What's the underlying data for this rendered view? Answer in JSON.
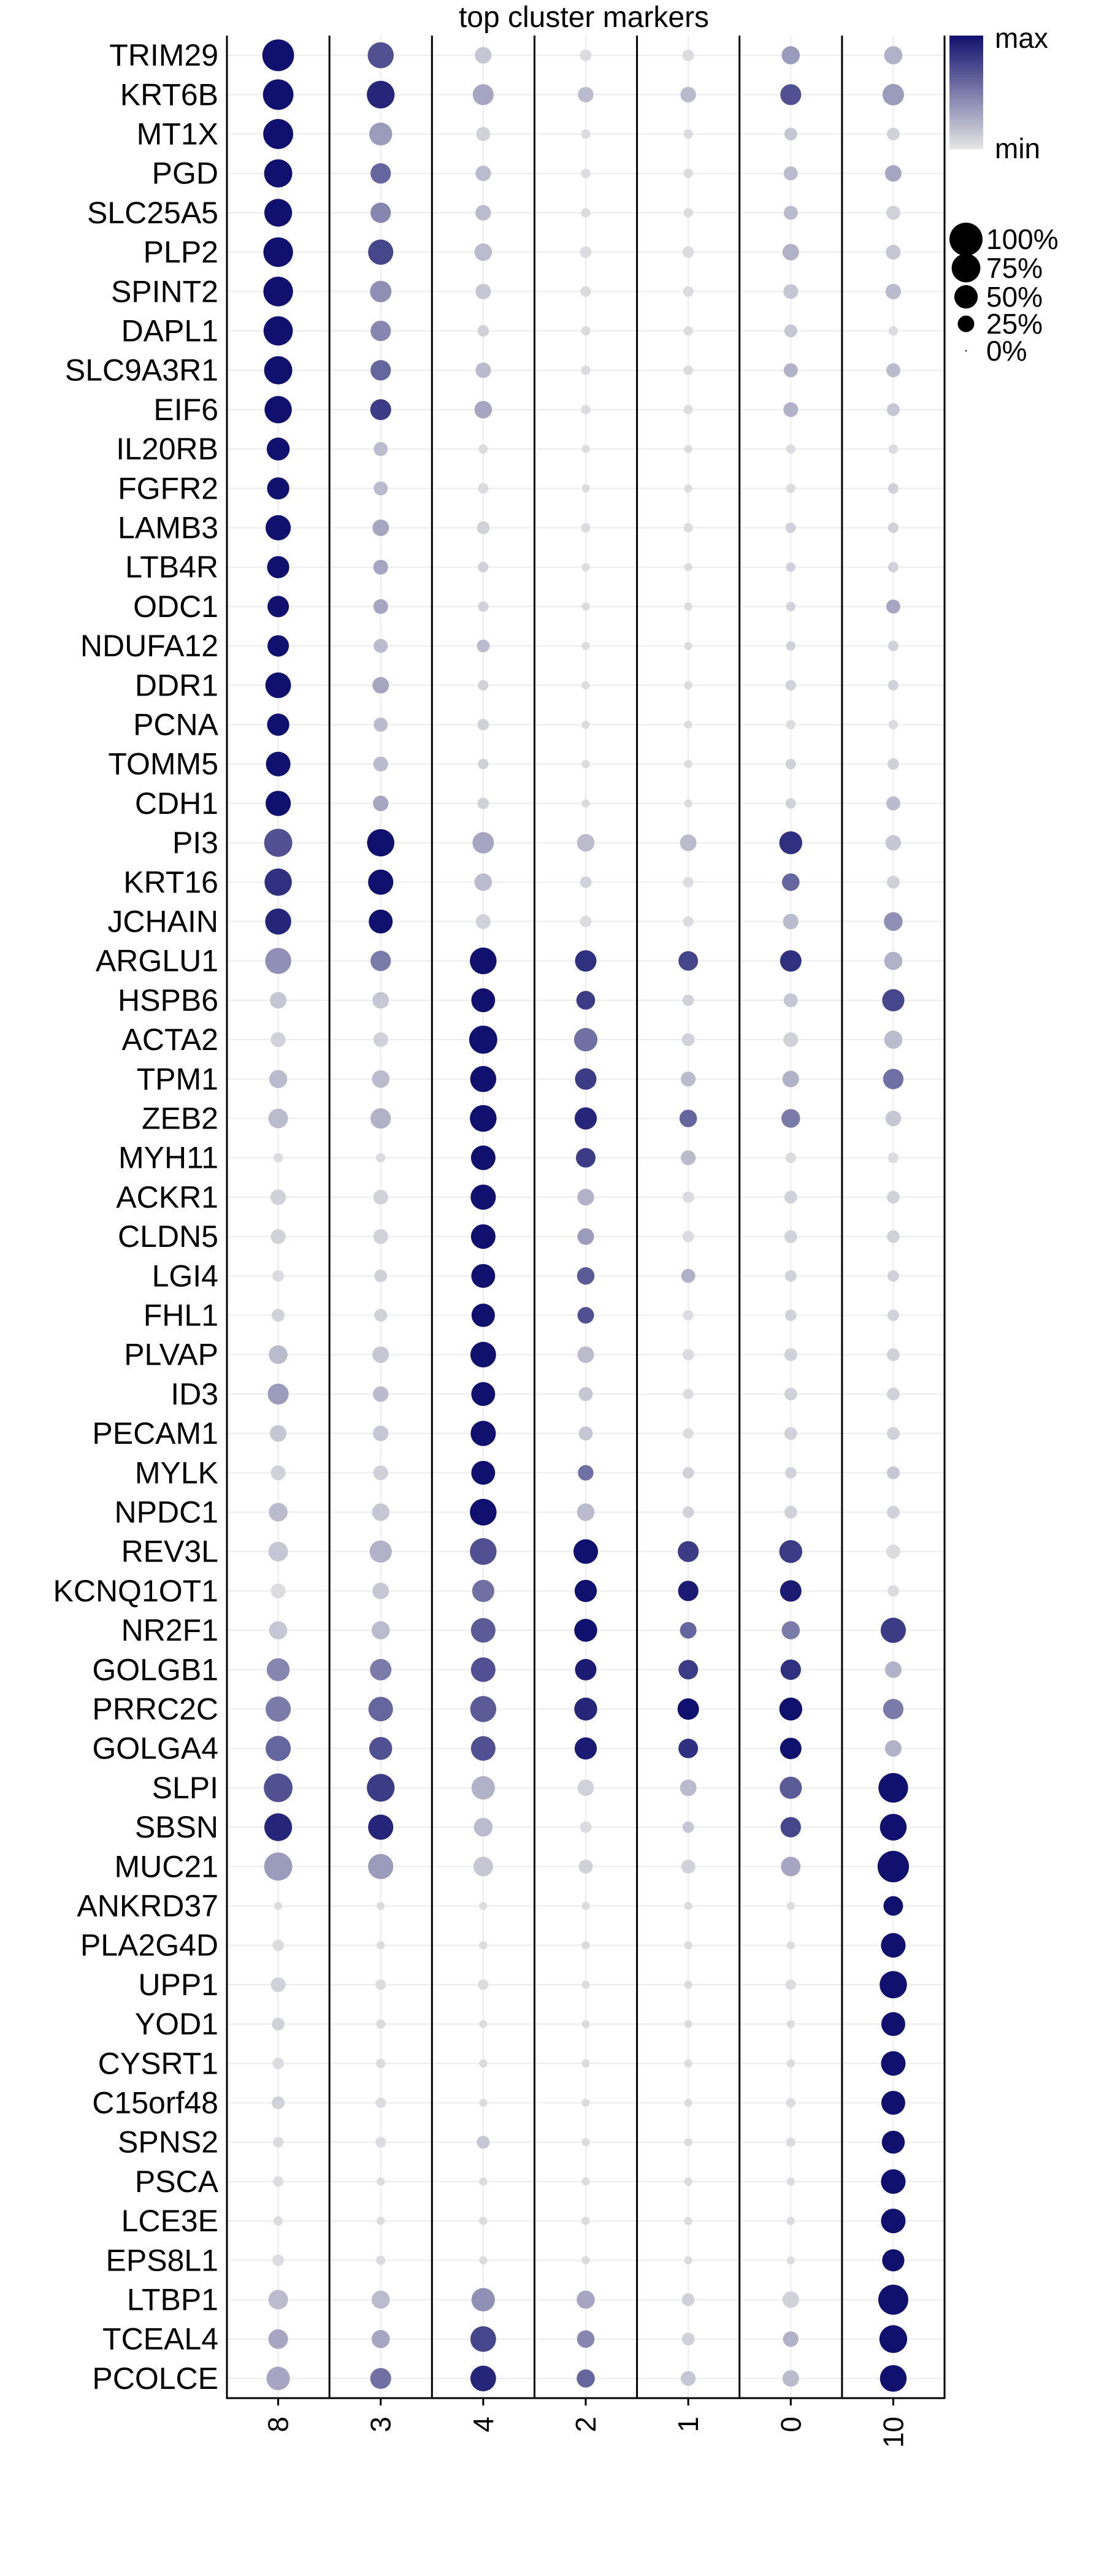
{
  "chart_data": {
    "type": "dotplot",
    "title": "top cluster markers",
    "xlabel": "",
    "ylabel": "",
    "clusters": [
      "8",
      "3",
      "4",
      "2",
      "1",
      "0",
      "10"
    ],
    "genes": [
      "TRIM29",
      "KRT6B",
      "MT1X",
      "PGD",
      "SLC25A5",
      "PLP2",
      "SPINT2",
      "DAPL1",
      "SLC9A3R1",
      "EIF6",
      "IL20RB",
      "FGFR2",
      "LAMB3",
      "LTB4R",
      "ODC1",
      "NDUFA12",
      "DDR1",
      "PCNA",
      "TOMM5",
      "CDH1",
      "PI3",
      "KRT16",
      "JCHAIN",
      "ARGLU1",
      "HSPB6",
      "ACTA2",
      "TPM1",
      "ZEB2",
      "MYH11",
      "ACKR1",
      "CLDN5",
      "LGI4",
      "FHL1",
      "PLVAP",
      "ID3",
      "PECAM1",
      "MYLK",
      "NPDC1",
      "REV3L",
      "KCNQ1OT1",
      "NR2F1",
      "GOLGB1",
      "PRRC2C",
      "GOLGA4",
      "SLPI",
      "SBSN",
      "MUC21",
      "ANKRD37",
      "PLA2G4D",
      "UPP1",
      "YOD1",
      "CYSRT1",
      "C15orf48",
      "SPNS2",
      "PSCA",
      "LCE3E",
      "EPS8L1",
      "LTBP1",
      "TCEAL4",
      "PCOLCE"
    ],
    "pct_expressed": [
      [
        0.92,
        0.62,
        0.25,
        0.12,
        0.12,
        0.3,
        0.3
      ],
      [
        0.85,
        0.7,
        0.4,
        0.22,
        0.22,
        0.4,
        0.42
      ],
      [
        0.82,
        0.48,
        0.18,
        0.08,
        0.08,
        0.15,
        0.15
      ],
      [
        0.72,
        0.38,
        0.22,
        0.08,
        0.08,
        0.18,
        0.25
      ],
      [
        0.7,
        0.38,
        0.22,
        0.08,
        0.08,
        0.18,
        0.18
      ],
      [
        0.8,
        0.58,
        0.28,
        0.12,
        0.12,
        0.25,
        0.2
      ],
      [
        0.8,
        0.42,
        0.22,
        0.1,
        0.1,
        0.2,
        0.22
      ],
      [
        0.78,
        0.38,
        0.12,
        0.08,
        0.08,
        0.15,
        0.08
      ],
      [
        0.72,
        0.38,
        0.22,
        0.08,
        0.08,
        0.18,
        0.18
      ],
      [
        0.68,
        0.4,
        0.28,
        0.08,
        0.08,
        0.2,
        0.15
      ],
      [
        0.48,
        0.18,
        0.08,
        0.06,
        0.06,
        0.08,
        0.08
      ],
      [
        0.45,
        0.18,
        0.1,
        0.06,
        0.06,
        0.08,
        0.1
      ],
      [
        0.58,
        0.25,
        0.15,
        0.08,
        0.08,
        0.1,
        0.1
      ],
      [
        0.45,
        0.2,
        0.1,
        0.06,
        0.06,
        0.08,
        0.1
      ],
      [
        0.42,
        0.2,
        0.1,
        0.06,
        0.06,
        0.08,
        0.18
      ],
      [
        0.42,
        0.18,
        0.15,
        0.06,
        0.06,
        0.08,
        0.1
      ],
      [
        0.6,
        0.25,
        0.1,
        0.06,
        0.06,
        0.1,
        0.1
      ],
      [
        0.45,
        0.18,
        0.12,
        0.06,
        0.06,
        0.08,
        0.08
      ],
      [
        0.55,
        0.2,
        0.1,
        0.06,
        0.06,
        0.1,
        0.12
      ],
      [
        0.58,
        0.22,
        0.12,
        0.06,
        0.06,
        0.1,
        0.18
      ],
      [
        0.72,
        0.68,
        0.42,
        0.28,
        0.25,
        0.48,
        0.22
      ],
      [
        0.68,
        0.58,
        0.28,
        0.12,
        0.1,
        0.28,
        0.15
      ],
      [
        0.62,
        0.52,
        0.2,
        0.12,
        0.1,
        0.22,
        0.32
      ],
      [
        0.62,
        0.38,
        0.65,
        0.42,
        0.35,
        0.42,
        0.3
      ],
      [
        0.25,
        0.25,
        0.52,
        0.32,
        0.12,
        0.18,
        0.45
      ],
      [
        0.2,
        0.2,
        0.72,
        0.5,
        0.15,
        0.2,
        0.3
      ],
      [
        0.3,
        0.28,
        0.62,
        0.42,
        0.2,
        0.25,
        0.38
      ],
      [
        0.35,
        0.38,
        0.65,
        0.45,
        0.28,
        0.32,
        0.22
      ],
      [
        0.08,
        0.08,
        0.55,
        0.35,
        0.2,
        0.1,
        0.1
      ],
      [
        0.22,
        0.2,
        0.58,
        0.25,
        0.12,
        0.15,
        0.15
      ],
      [
        0.2,
        0.2,
        0.55,
        0.25,
        0.12,
        0.15,
        0.15
      ],
      [
        0.12,
        0.15,
        0.52,
        0.28,
        0.18,
        0.12,
        0.12
      ],
      [
        0.15,
        0.15,
        0.5,
        0.25,
        0.1,
        0.12,
        0.12
      ],
      [
        0.32,
        0.25,
        0.6,
        0.25,
        0.12,
        0.15,
        0.15
      ],
      [
        0.4,
        0.22,
        0.52,
        0.18,
        0.1,
        0.15,
        0.15
      ],
      [
        0.25,
        0.22,
        0.58,
        0.18,
        0.1,
        0.15,
        0.15
      ],
      [
        0.2,
        0.2,
        0.52,
        0.22,
        0.12,
        0.12,
        0.15
      ],
      [
        0.32,
        0.28,
        0.65,
        0.28,
        0.12,
        0.15,
        0.15
      ],
      [
        0.35,
        0.45,
        0.65,
        0.55,
        0.4,
        0.48,
        0.18
      ],
      [
        0.2,
        0.25,
        0.45,
        0.45,
        0.38,
        0.42,
        0.12
      ],
      [
        0.3,
        0.3,
        0.55,
        0.48,
        0.25,
        0.3,
        0.58
      ],
      [
        0.48,
        0.42,
        0.55,
        0.42,
        0.35,
        0.38,
        0.25
      ],
      [
        0.58,
        0.55,
        0.62,
        0.48,
        0.42,
        0.48,
        0.38
      ],
      [
        0.58,
        0.48,
        0.55,
        0.45,
        0.35,
        0.42,
        0.25
      ],
      [
        0.75,
        0.7,
        0.5,
        0.25,
        0.25,
        0.45,
        0.8
      ],
      [
        0.7,
        0.58,
        0.32,
        0.12,
        0.12,
        0.38,
        0.65
      ],
      [
        0.72,
        0.58,
        0.35,
        0.18,
        0.18,
        0.35,
        0.9
      ],
      [
        0.06,
        0.06,
        0.06,
        0.06,
        0.06,
        0.06,
        0.35
      ],
      [
        0.12,
        0.06,
        0.06,
        0.06,
        0.06,
        0.06,
        0.55
      ],
      [
        0.2,
        0.1,
        0.1,
        0.06,
        0.06,
        0.1,
        0.68
      ],
      [
        0.15,
        0.08,
        0.06,
        0.06,
        0.06,
        0.06,
        0.52
      ],
      [
        0.12,
        0.08,
        0.06,
        0.06,
        0.06,
        0.06,
        0.55
      ],
      [
        0.15,
        0.1,
        0.06,
        0.06,
        0.06,
        0.08,
        0.52
      ],
      [
        0.1,
        0.1,
        0.15,
        0.06,
        0.06,
        0.08,
        0.48
      ],
      [
        0.1,
        0.06,
        0.06,
        0.06,
        0.06,
        0.06,
        0.55
      ],
      [
        0.08,
        0.06,
        0.06,
        0.06,
        0.06,
        0.06,
        0.55
      ],
      [
        0.12,
        0.08,
        0.06,
        0.06,
        0.06,
        0.06,
        0.45
      ],
      [
        0.35,
        0.3,
        0.5,
        0.3,
        0.15,
        0.25,
        0.82
      ],
      [
        0.35,
        0.3,
        0.6,
        0.28,
        0.15,
        0.22,
        0.7
      ],
      [
        0.5,
        0.4,
        0.6,
        0.3,
        0.2,
        0.25,
        0.65
      ]
    ],
    "avg_expression_scaled": [
      [
        1.0,
        0.7,
        0.15,
        0.05,
        0.05,
        0.35,
        0.25
      ],
      [
        1.0,
        0.9,
        0.3,
        0.2,
        0.2,
        0.7,
        0.35
      ],
      [
        1.0,
        0.35,
        0.1,
        0.05,
        0.05,
        0.15,
        0.1
      ],
      [
        1.0,
        0.6,
        0.2,
        0.05,
        0.05,
        0.2,
        0.3
      ],
      [
        1.0,
        0.45,
        0.2,
        0.05,
        0.05,
        0.2,
        0.1
      ],
      [
        1.0,
        0.75,
        0.2,
        0.05,
        0.05,
        0.25,
        0.15
      ],
      [
        1.0,
        0.4,
        0.15,
        0.05,
        0.05,
        0.15,
        0.2
      ],
      [
        1.0,
        0.45,
        0.1,
        0.05,
        0.05,
        0.15,
        0.05
      ],
      [
        1.0,
        0.6,
        0.2,
        0.05,
        0.05,
        0.25,
        0.2
      ],
      [
        1.0,
        0.8,
        0.3,
        0.05,
        0.05,
        0.25,
        0.15
      ],
      [
        1.0,
        0.2,
        0.05,
        0.05,
        0.05,
        0.05,
        0.05
      ],
      [
        1.0,
        0.2,
        0.05,
        0.05,
        0.05,
        0.05,
        0.1
      ],
      [
        1.0,
        0.3,
        0.1,
        0.05,
        0.05,
        0.1,
        0.1
      ],
      [
        1.0,
        0.3,
        0.1,
        0.05,
        0.05,
        0.1,
        0.1
      ],
      [
        1.0,
        0.3,
        0.1,
        0.05,
        0.05,
        0.1,
        0.3
      ],
      [
        1.0,
        0.2,
        0.2,
        0.05,
        0.05,
        0.1,
        0.1
      ],
      [
        1.0,
        0.3,
        0.1,
        0.05,
        0.05,
        0.1,
        0.1
      ],
      [
        1.0,
        0.2,
        0.1,
        0.05,
        0.05,
        0.05,
        0.05
      ],
      [
        1.0,
        0.2,
        0.1,
        0.05,
        0.05,
        0.1,
        0.1
      ],
      [
        1.0,
        0.3,
        0.1,
        0.05,
        0.05,
        0.1,
        0.2
      ],
      [
        0.7,
        1.0,
        0.3,
        0.2,
        0.2,
        0.85,
        0.15
      ],
      [
        0.85,
        1.0,
        0.2,
        0.1,
        0.05,
        0.6,
        0.1
      ],
      [
        0.9,
        1.0,
        0.1,
        0.05,
        0.05,
        0.2,
        0.4
      ],
      [
        0.4,
        0.5,
        1.0,
        0.85,
        0.75,
        0.85,
        0.25
      ],
      [
        0.15,
        0.15,
        1.0,
        0.8,
        0.1,
        0.15,
        0.75
      ],
      [
        0.1,
        0.1,
        1.0,
        0.55,
        0.1,
        0.1,
        0.2
      ],
      [
        0.2,
        0.2,
        1.0,
        0.8,
        0.2,
        0.25,
        0.55
      ],
      [
        0.2,
        0.25,
        1.0,
        0.9,
        0.6,
        0.5,
        0.15
      ],
      [
        0.05,
        0.05,
        1.0,
        0.8,
        0.2,
        0.05,
        0.05
      ],
      [
        0.1,
        0.1,
        1.0,
        0.25,
        0.05,
        0.1,
        0.1
      ],
      [
        0.1,
        0.1,
        1.0,
        0.35,
        0.05,
        0.1,
        0.1
      ],
      [
        0.05,
        0.1,
        1.0,
        0.65,
        0.25,
        0.1,
        0.1
      ],
      [
        0.1,
        0.1,
        1.0,
        0.7,
        0.05,
        0.1,
        0.1
      ],
      [
        0.2,
        0.15,
        1.0,
        0.2,
        0.05,
        0.1,
        0.1
      ],
      [
        0.35,
        0.2,
        1.0,
        0.15,
        0.05,
        0.1,
        0.1
      ],
      [
        0.15,
        0.15,
        1.0,
        0.15,
        0.05,
        0.1,
        0.1
      ],
      [
        0.1,
        0.1,
        1.0,
        0.55,
        0.1,
        0.1,
        0.15
      ],
      [
        0.2,
        0.15,
        1.0,
        0.2,
        0.1,
        0.1,
        0.1
      ],
      [
        0.15,
        0.25,
        0.7,
        1.0,
        0.8,
        0.8,
        0.05
      ],
      [
        0.05,
        0.15,
        0.55,
        1.0,
        0.95,
        0.95,
        0.05
      ],
      [
        0.15,
        0.2,
        0.65,
        1.0,
        0.6,
        0.5,
        0.8
      ],
      [
        0.45,
        0.5,
        0.7,
        0.95,
        0.8,
        0.85,
        0.25
      ],
      [
        0.5,
        0.6,
        0.65,
        0.9,
        1.0,
        1.0,
        0.5
      ],
      [
        0.6,
        0.7,
        0.7,
        0.95,
        0.85,
        1.0,
        0.25
      ],
      [
        0.7,
        0.8,
        0.25,
        0.1,
        0.2,
        0.65,
        1.0
      ],
      [
        0.9,
        0.9,
        0.2,
        0.05,
        0.15,
        0.75,
        1.0
      ],
      [
        0.35,
        0.35,
        0.15,
        0.1,
        0.1,
        0.3,
        1.0
      ],
      [
        0.05,
        0.05,
        0.05,
        0.05,
        0.05,
        0.05,
        1.0
      ],
      [
        0.05,
        0.05,
        0.05,
        0.05,
        0.05,
        0.05,
        1.0
      ],
      [
        0.1,
        0.05,
        0.05,
        0.05,
        0.05,
        0.05,
        1.0
      ],
      [
        0.1,
        0.05,
        0.05,
        0.05,
        0.05,
        0.05,
        1.0
      ],
      [
        0.05,
        0.05,
        0.05,
        0.05,
        0.05,
        0.05,
        1.0
      ],
      [
        0.1,
        0.05,
        0.05,
        0.05,
        0.05,
        0.05,
        1.0
      ],
      [
        0.05,
        0.05,
        0.15,
        0.05,
        0.05,
        0.05,
        1.0
      ],
      [
        0.05,
        0.05,
        0.05,
        0.05,
        0.05,
        0.05,
        1.0
      ],
      [
        0.05,
        0.05,
        0.05,
        0.05,
        0.05,
        0.05,
        1.0
      ],
      [
        0.05,
        0.05,
        0.05,
        0.05,
        0.05,
        0.05,
        1.0
      ],
      [
        0.2,
        0.2,
        0.4,
        0.3,
        0.1,
        0.1,
        1.0
      ],
      [
        0.3,
        0.3,
        0.75,
        0.45,
        0.1,
        0.25,
        1.0
      ],
      [
        0.3,
        0.55,
        0.9,
        0.6,
        0.15,
        0.2,
        1.0
      ]
    ],
    "color_legend": {
      "high_label": "max",
      "low_label": "min",
      "high_color": "#10106e",
      "low_color": "#e6e6e6"
    },
    "size_legend": [
      {
        "label": "100%",
        "value": 1.0
      },
      {
        "label": "75%",
        "value": 0.75
      },
      {
        "label": "50%",
        "value": 0.5
      },
      {
        "label": "25%",
        "value": 0.25
      },
      {
        "label": "0%",
        "value": 0.0
      }
    ],
    "grid": true,
    "legend_position": "top-right"
  }
}
